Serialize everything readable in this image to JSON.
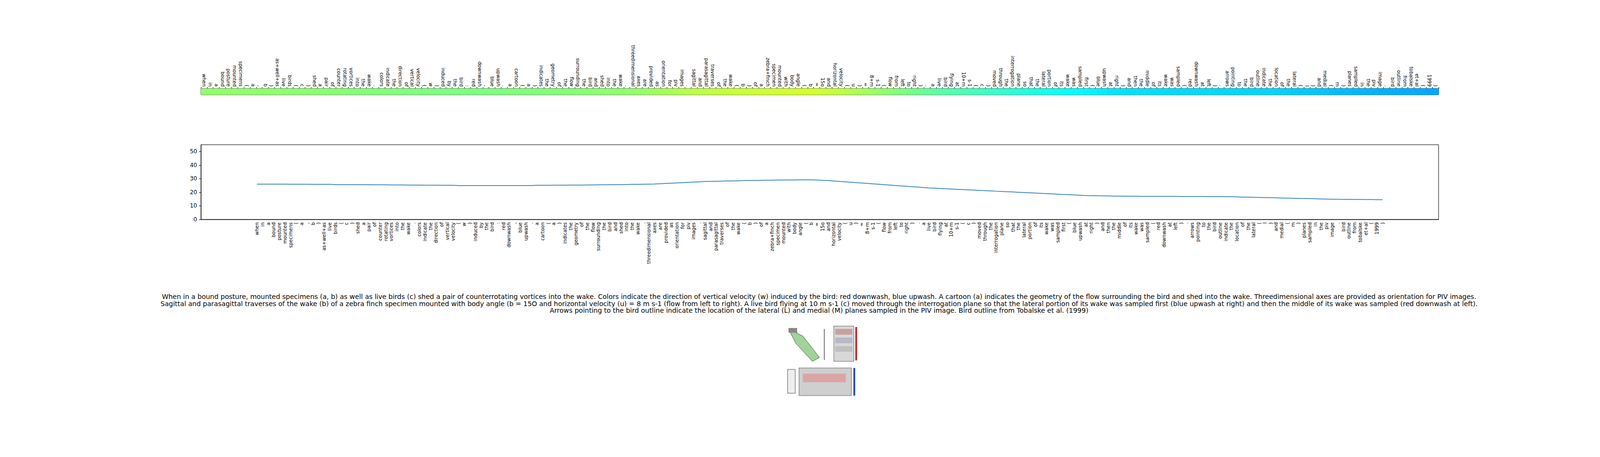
{
  "chart_data": [
    {
      "type": "heatmap",
      "categories": [
        "when",
        "in",
        "a",
        "bound",
        "posture",
        "mounted",
        "specimens",
        "(",
        "a",
        ",",
        "b",
        ")",
        "as+well+as",
        "live",
        "birds",
        "(",
        "c",
        ")",
        "shed",
        "a",
        "pair",
        "of",
        "counter",
        "rotating",
        "vortices",
        "into",
        "the",
        "wake",
        ".",
        "colors",
        "indicate",
        "the",
        "direction",
        "of",
        "vertical",
        "velocity",
        "(",
        "w",
        ")",
        "induced",
        "by",
        "the",
        "bird",
        ":",
        "red",
        "downwash",
        ",",
        "blue",
        "upwash",
        ".",
        "a",
        "cartoon",
        "(",
        "a",
        ")",
        "indicates",
        "the",
        "geometry",
        "of",
        "the",
        "flow",
        "surrounding",
        "the",
        "bird",
        "and",
        "shed",
        "into",
        "the",
        "wake",
        ".",
        "threedimensional",
        "axes",
        "are",
        "provided",
        "as",
        "orientation",
        "for",
        "piv",
        "images",
        ".",
        "sagittal",
        "and",
        "parasagittal",
        "traverses",
        "of",
        "the",
        "wake",
        "(",
        "b",
        ")",
        "of",
        "a",
        "zebra+finch",
        "specimen",
        "mounted",
        "with",
        "body",
        "angle",
        "(",
        "b",
        "=",
        "15o",
        "and",
        "horizontal",
        "velocity",
        "(",
        "u",
        ")",
        "=",
        "8+m",
        "s-1",
        "(",
        "flow",
        "from",
        "left",
        "to",
        "right",
        ")",
        ".",
        "a",
        "live",
        "bird",
        "flying",
        "at",
        "10+m",
        "s-1",
        "(",
        "c",
        ")",
        "moved",
        "through",
        "the",
        "interrogation",
        "plane",
        "so",
        "that",
        "the",
        "lateral",
        "portion",
        "of",
        "its",
        "wake",
        "was",
        "sampled",
        "first",
        "(",
        "blue",
        "upwash",
        "at",
        "right",
        ")",
        "and",
        "then",
        "the",
        "middle",
        "of",
        "its",
        "wake",
        "was",
        "sampled",
        "(",
        "red",
        "downwash",
        "at",
        "left",
        ")",
        ".",
        "arrows",
        "pointing",
        "to",
        "the",
        "bird",
        "outline",
        "indicate",
        "the",
        "location",
        "of",
        "the",
        "lateral",
        "(",
        "l",
        ")",
        "and",
        "medial",
        "(",
        "m",
        ")",
        "planes",
        "sampled",
        "in",
        "the",
        "piv",
        "image",
        ".",
        "bird",
        "outline",
        "from",
        "tobalske",
        "et+al",
        "(",
        "1999",
        ")"
      ],
      "values": [
        26,
        26,
        26,
        26,
        26,
        26,
        25.9,
        25.9,
        25.9,
        25.9,
        25.8,
        25.8,
        25.8,
        25.8,
        25.7,
        25.7,
        25.7,
        25.7,
        25.6,
        25.6,
        25.6,
        25.5,
        25.5,
        25.5,
        25.4,
        25.4,
        25.4,
        25.3,
        25.3,
        25.3,
        25.2,
        25.2,
        25.2,
        25.1,
        25.1,
        25.1,
        25.0,
        25.0,
        25.0,
        25.0,
        25.0,
        25.0,
        25.0,
        25.0,
        25.0,
        25.0,
        25.0,
        25.0,
        25.0,
        25.0,
        25.1,
        25.1,
        25.1,
        25.2,
        25.2,
        25.2,
        25.3,
        25.3,
        25.3,
        25.4,
        25.4,
        25.5,
        25.5,
        25.6,
        25.6,
        25.7,
        25.7,
        25.8,
        25.8,
        25.9,
        26.0,
        26.1,
        26.3,
        26.5,
        26.7,
        26.9,
        27.1,
        27.3,
        27.5,
        27.7,
        27.9,
        28.0,
        28.1,
        28.2,
        28.3,
        28.4,
        28.5,
        28.6,
        28.7,
        28.8,
        28.8,
        28.9,
        28.9,
        29.0,
        29.0,
        29.1,
        29.1,
        29.2,
        29.2,
        29.2,
        29.0,
        28.8,
        28.6,
        28.3,
        28.0,
        27.7,
        27.4,
        27.1,
        26.8,
        26.5,
        26.2,
        25.9,
        25.6,
        25.3,
        25.0,
        24.7,
        24.4,
        24.1,
        23.8,
        23.5,
        23.2,
        23.0,
        22.8,
        22.6,
        22.4,
        22.2,
        22.0,
        21.8,
        21.6,
        21.4,
        21.2,
        21.0,
        20.8,
        20.6,
        20.4,
        20.2,
        20.0,
        19.8,
        19.6,
        19.4,
        19.2,
        19.0,
        18.8,
        18.6,
        18.4,
        18.2,
        18.0,
        17.8,
        17.6,
        17.5,
        17.4,
        17.3,
        17.3,
        17.2,
        17.2,
        17.1,
        17.1,
        17.1,
        17.0,
        17.0,
        17.0,
        17.0,
        17.0,
        17.0,
        17.0,
        16.9,
        16.9,
        16.9,
        16.9,
        16.9,
        16.8,
        16.8,
        16.8,
        16.7,
        16.7,
        16.6,
        16.5,
        16.4,
        16.3,
        16.2,
        16.1,
        16.0,
        15.9,
        15.8,
        15.7,
        15.6,
        15.5,
        15.4,
        15.3,
        15.2,
        15.1,
        15.0,
        14.9,
        14.9,
        14.8,
        14.8,
        14.7,
        14.7,
        14.6,
        14.6,
        14.5,
        14.5
      ],
      "color_range": [
        0,
        50
      ],
      "tick_labels": "x"
    },
    {
      "type": "line",
      "categories": [
        null,
        null,
        null,
        null,
        null,
        null,
        null,
        null,
        null,
        null,
        "when",
        "in",
        "a",
        "bound",
        "posture",
        "mounted",
        "specimens",
        "(",
        "a",
        ",",
        "b",
        ")",
        "as+well+as",
        "live",
        "birds",
        "(",
        "c",
        ")",
        "shed",
        "a",
        "pair",
        "of",
        "counter",
        "rotating",
        "vortices",
        "into",
        "the",
        "wake",
        ".",
        "colors",
        "indicate",
        "the",
        "direction",
        "of",
        "vertical",
        "velocity",
        "(",
        "w",
        ")",
        "induced",
        "by",
        "the",
        "bird",
        ":",
        "red",
        "downwash",
        ",",
        "blue",
        "upwash",
        ".",
        "a",
        "cartoon",
        "(",
        "a",
        ")",
        "indicates",
        "the",
        "geometry",
        "of",
        "the",
        "flow",
        "surrounding",
        "the",
        "bird",
        "and",
        "shed",
        "into",
        "the",
        "wake",
        ".",
        "threedimensional",
        "axes",
        "are",
        "provided",
        "as",
        "orientation",
        "for",
        "piv",
        "images",
        ".",
        "sagittal",
        "and",
        "parasagittal",
        "traverses",
        "of",
        "the",
        "wake",
        "(",
        "b",
        ")",
        "of",
        "a",
        "zebra+finch",
        "specimen",
        "mounted",
        "with",
        "body",
        "angle",
        "(",
        "b",
        "=",
        "15o",
        "and",
        "horizontal",
        "velocity",
        "(",
        "u",
        ")",
        "=",
        "8+m",
        "s-1",
        "(",
        "flow",
        "from",
        "left",
        "to",
        "right",
        ")",
        ".",
        "a",
        "live",
        "bird",
        "flying",
        "at",
        "10+m",
        "s-1",
        "(",
        "c",
        ")",
        "moved",
        "through",
        "the",
        "interrogation",
        "plane",
        "so",
        "that",
        "the",
        "lateral",
        "portion",
        "of",
        "its",
        "wake",
        "was",
        "sampled",
        "first",
        "(",
        "blue",
        "upwash",
        "at",
        "right",
        ")",
        "and",
        "then",
        "the",
        "middle",
        "of",
        "its",
        "wake",
        "was",
        "sampled",
        "(",
        "red",
        "downwash",
        "at",
        "left",
        ")",
        ".",
        "arrows",
        "pointing",
        "to",
        "the",
        "bird",
        "outline",
        "indicate",
        "the",
        "location",
        "of",
        "the",
        "lateral",
        "(",
        "l",
        ")",
        "and",
        "medial",
        "(",
        "m",
        ")",
        "planes",
        "sampled",
        "in",
        "the",
        "piv",
        "image",
        ".",
        "bird",
        "outline",
        "from",
        "tobalske",
        "et+al",
        "(",
        "1999",
        ")",
        null,
        null,
        null,
        null,
        null,
        null,
        null,
        null,
        null,
        null
      ],
      "values": [
        null,
        null,
        null,
        null,
        null,
        null,
        null,
        null,
        null,
        null,
        26,
        26,
        26,
        26,
        26,
        26,
        25.9,
        25.9,
        25.9,
        25.9,
        25.8,
        25.8,
        25.8,
        25.8,
        25.7,
        25.7,
        25.7,
        25.7,
        25.6,
        25.6,
        25.6,
        25.5,
        25.5,
        25.5,
        25.4,
        25.4,
        25.4,
        25.3,
        25.3,
        25.3,
        25.2,
        25.2,
        25.2,
        25.1,
        25.1,
        25.1,
        25.0,
        25.0,
        25.0,
        25.0,
        25.0,
        25.0,
        25.0,
        25.0,
        25.0,
        25.0,
        25.0,
        25.0,
        25.0,
        25.0,
        25.1,
        25.1,
        25.1,
        25.2,
        25.2,
        25.2,
        25.3,
        25.3,
        25.3,
        25.4,
        25.4,
        25.5,
        25.5,
        25.6,
        25.6,
        25.7,
        25.7,
        25.8,
        25.8,
        25.9,
        26.0,
        26.1,
        26.3,
        26.5,
        26.7,
        26.9,
        27.1,
        27.3,
        27.5,
        27.7,
        27.9,
        28.0,
        28.1,
        28.2,
        28.3,
        28.4,
        28.5,
        28.6,
        28.7,
        28.8,
        28.8,
        28.9,
        28.9,
        29.0,
        29.0,
        29.1,
        29.1,
        29.2,
        29.2,
        29.2,
        29.0,
        28.8,
        28.6,
        28.3,
        28.0,
        27.7,
        27.4,
        27.1,
        26.8,
        26.5,
        26.2,
        25.9,
        25.6,
        25.3,
        25.0,
        24.7,
        24.4,
        24.1,
        23.8,
        23.5,
        23.2,
        23.0,
        22.8,
        22.6,
        22.4,
        22.2,
        22.0,
        21.8,
        21.6,
        21.4,
        21.2,
        21.0,
        20.8,
        20.6,
        20.4,
        20.2,
        20.0,
        19.8,
        19.6,
        19.4,
        19.2,
        19.0,
        18.8,
        18.6,
        18.4,
        18.2,
        18.0,
        17.8,
        17.6,
        17.5,
        17.4,
        17.3,
        17.3,
        17.2,
        17.2,
        17.1,
        17.1,
        17.1,
        17.0,
        17.0,
        17.0,
        17.0,
        17.0,
        17.0,
        17.0,
        16.9,
        16.9,
        16.9,
        16.9,
        16.9,
        16.8,
        16.8,
        16.8,
        16.7,
        16.7,
        16.6,
        16.5,
        16.4,
        16.3,
        16.2,
        16.1,
        16.0,
        15.9,
        15.8,
        15.7,
        15.6,
        15.5,
        15.4,
        15.3,
        15.2,
        15.1,
        15.0,
        14.9,
        14.9,
        14.8,
        14.8,
        14.7,
        14.7,
        14.6,
        14.6,
        14.5,
        14.5,
        null,
        null,
        null,
        null,
        null,
        null,
        null,
        null,
        null,
        null
      ],
      "color": "#1f77b4",
      "ylim": [
        0,
        55
      ],
      "yticks": [
        0,
        10,
        20,
        30,
        40,
        50
      ],
      "grid": false
    }
  ],
  "caption": [
    "When in a bound posture, mounted specimens (a, b) as well as live birds (c) shed a pair of counterrotating vortices into the wake. Colors indicate the direction of vertical velocity (w) induced by the bird: red downwash, blue upwash. A cartoon (a) indicates the geometry of the flow surrounding the bird and shed into the wake. Threedimensional axes are provided as orientation for PIV images.",
    "Sagittal and parasagittal traverses of the wake (b) of a zebra finch specimen mounted with body angle (b = 15O and horizontal velocity (u) = 8 m s-1 (flow from left to right). A live bird flying at 10 m s-1 (c) moved through the interrogation plane so that the lateral portion of its wake was sampled first (blue upwash at right) and then the middle of its wake was sampled (red downwash at left).",
    "Arrows pointing to the bird outline indicate the location of the lateral (L) and medial (M) planes sampled in the PIV image. Bird outline from Tobalske et al. (1999)"
  ]
}
